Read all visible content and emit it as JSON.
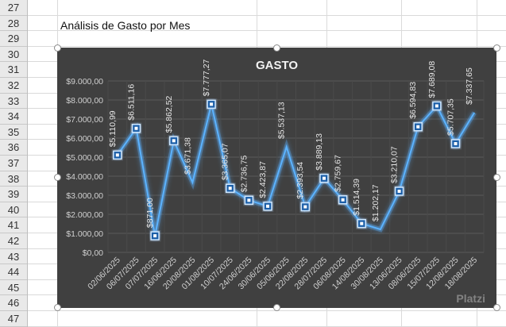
{
  "spreadsheet": {
    "row_numbers": [
      "27",
      "28",
      "29",
      "30",
      "31",
      "32",
      "33",
      "34",
      "35",
      "36",
      "37",
      "38",
      "39",
      "40",
      "41",
      "42",
      "43",
      "44",
      "45",
      "46",
      "47"
    ],
    "title_cell": "Análisis de Gasto por Mes"
  },
  "chart_data": {
    "type": "line",
    "title": "GASTO",
    "xlabel": "",
    "ylabel": "",
    "ylim": [
      0,
      9000
    ],
    "yticks": [
      "$0,00",
      "$1.000,00",
      "$2.000,00",
      "$3.000,00",
      "$4.000,00",
      "$5.000,00",
      "$6.000,00",
      "$7.000,00",
      "$8.000,00",
      "$9.000,00"
    ],
    "grid": true,
    "legend": "none",
    "line_color": "#5cb3ff",
    "categories": [
      "02/06/2025",
      "06/07/2025",
      "07/07/2025",
      "16/06/2025",
      "20/08/2025",
      "01/08/2025",
      "10/07/2025",
      "24/06/2025",
      "30/06/2025",
      "05/06/2025",
      "22/08/2025",
      "28/07/2025",
      "06/08/2025",
      "14/08/2025",
      "30/08/2025",
      "13/06/2025",
      "08/06/2025",
      "15/07/2025",
      "12/08/2025",
      "18/08/2025"
    ],
    "values": [
      5110.99,
      6511.16,
      871.0,
      5862.52,
      3671.38,
      7777.27,
      3365.07,
      2736.75,
      2423.87,
      5537.13,
      2393.54,
      3889.13,
      2759.67,
      1514.39,
      1202.17,
      3210.07,
      6594.83,
      7689.08,
      5707.35,
      7337.65
    ],
    "data_labels": [
      "$5.110,99",
      "$6.511,16",
      "$871,00",
      "$5.862,52",
      "$3.671,38",
      "$7.777,27",
      "$3.365,07",
      "$2.736,75",
      "$2.423,87",
      "$5.537,13",
      "$2.393,54",
      "$3.889,13",
      "$2.759,67",
      "$1.514,39",
      "$1.202,17",
      "$3.210,07",
      "$6.594,83",
      "$7.689,08",
      "$5.707,35",
      "$7.337,65"
    ],
    "markers": [
      true,
      true,
      true,
      true,
      false,
      true,
      true,
      true,
      true,
      false,
      true,
      true,
      true,
      true,
      false,
      true,
      true,
      true,
      true,
      false
    ]
  },
  "watermark": "Platzi"
}
